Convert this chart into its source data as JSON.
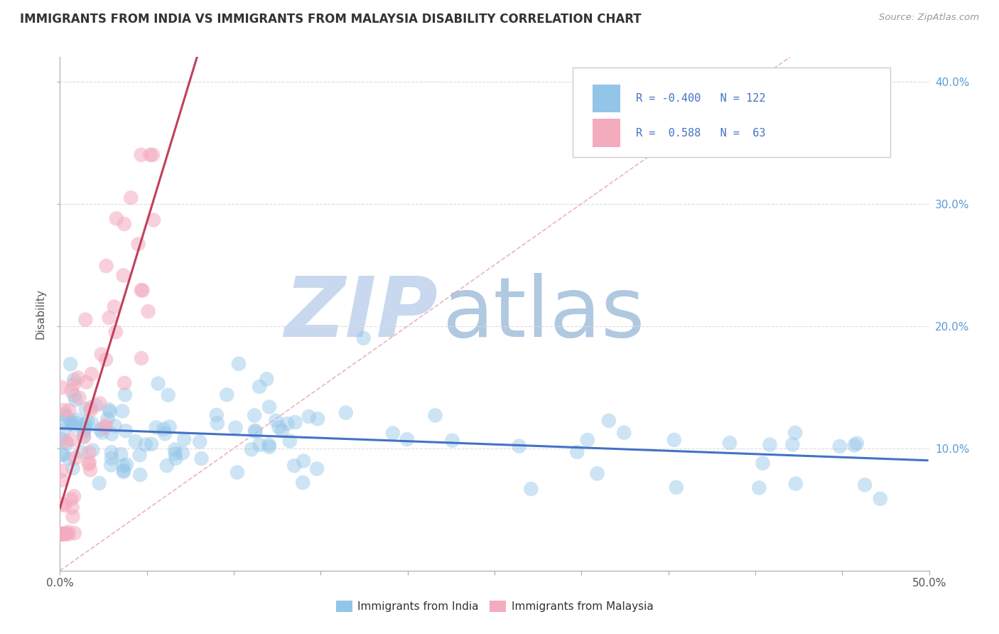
{
  "title": "IMMIGRANTS FROM INDIA VS IMMIGRANTS FROM MALAYSIA DISABILITY CORRELATION CHART",
  "source": "Source: ZipAtlas.com",
  "ylabel": "Disability",
  "xlim": [
    0.0,
    0.5
  ],
  "ylim": [
    0.0,
    0.42
  ],
  "yticks": [
    0.1,
    0.2,
    0.3,
    0.4
  ],
  "ytick_labels": [
    "10.0%",
    "20.0%",
    "30.0%",
    "40.0%"
  ],
  "legend_india_R": "-0.400",
  "legend_india_N": "122",
  "legend_malaysia_R": "0.588",
  "legend_malaysia_N": "63",
  "india_color": "#92C5E8",
  "malaysia_color": "#F4ABBE",
  "india_line_color": "#4472C4",
  "malaysia_line_color": "#C0405A",
  "diag_line_color": "#E8A0B0",
  "watermark_zip_color": "#C8D8EE",
  "watermark_atlas_color": "#B0C8E0",
  "background_color": "#FFFFFF",
  "india_scatter_seed": 42,
  "malaysia_scatter_seed": 99
}
